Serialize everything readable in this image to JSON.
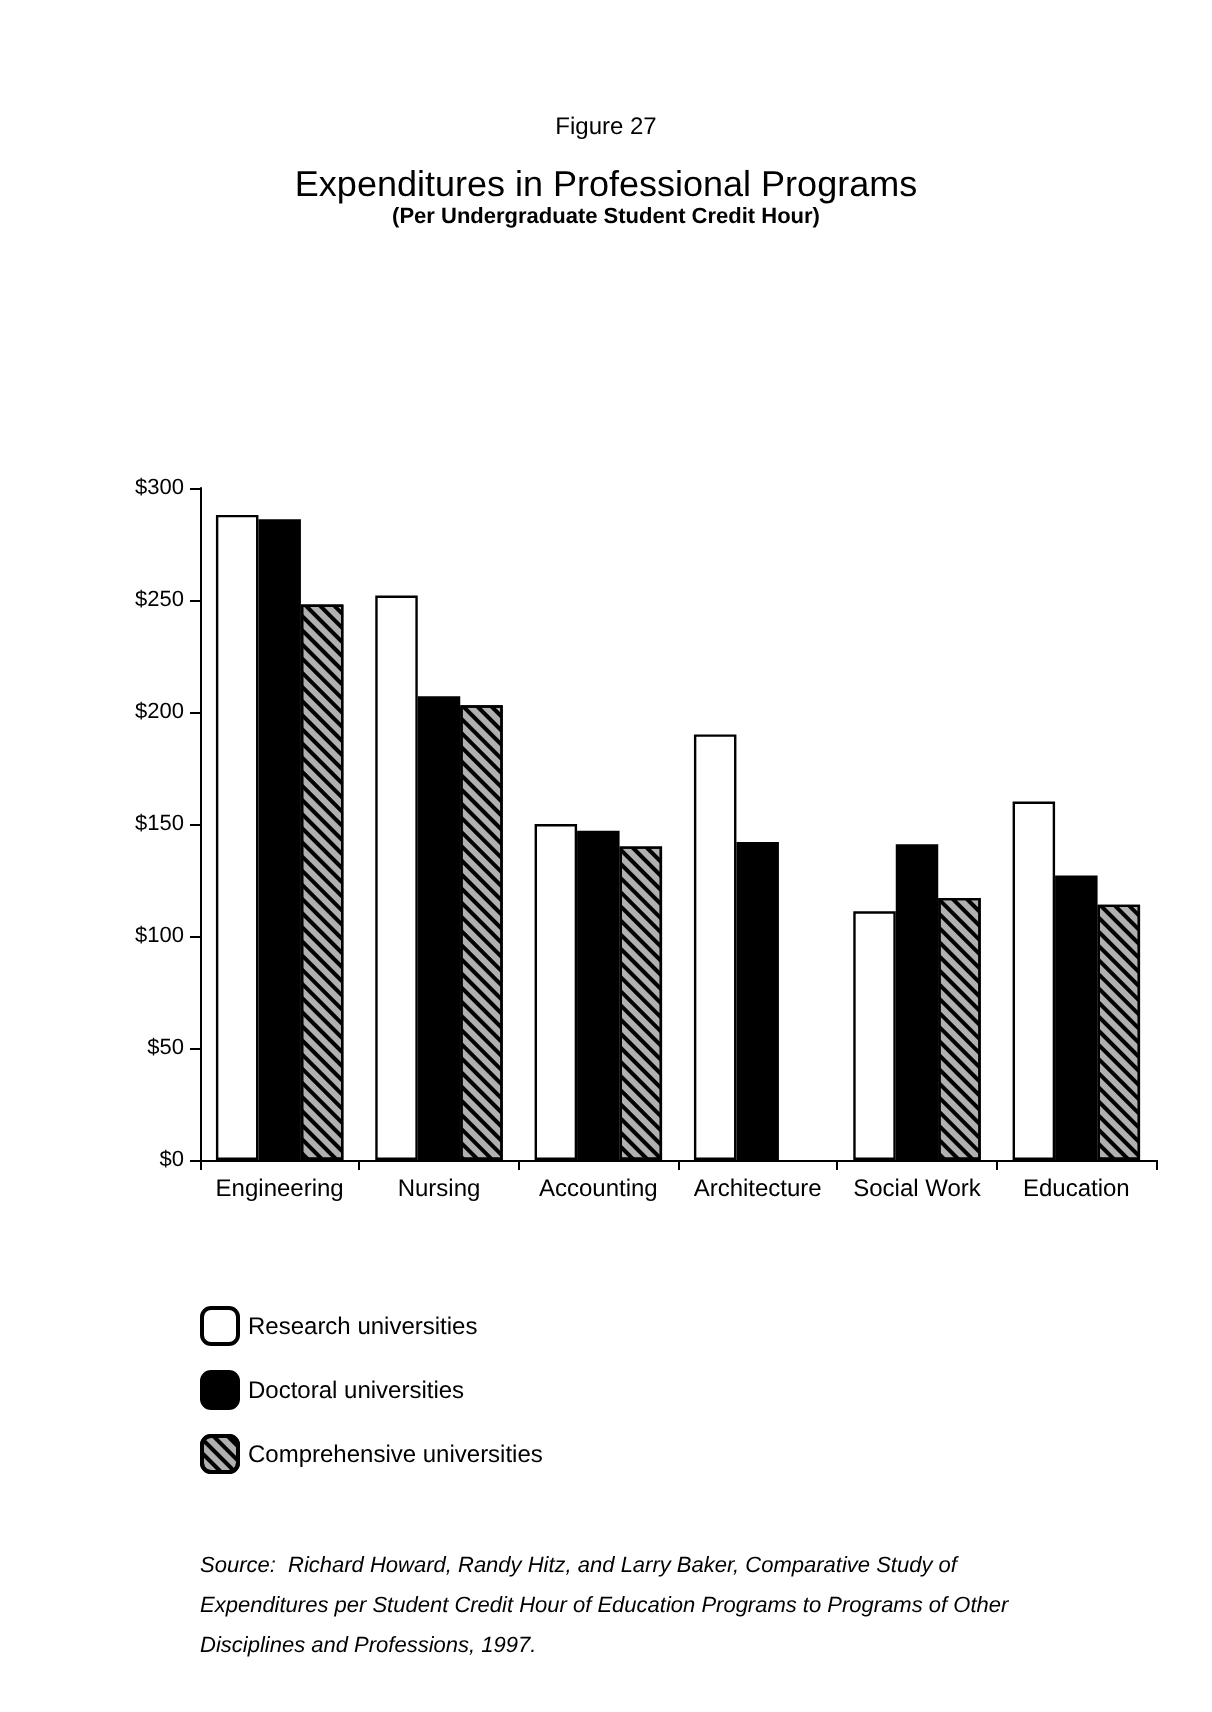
{
  "chart_data": {
    "type": "bar",
    "title": "Expenditures in Professional Programs",
    "subtitle": "(Per Undergraduate Student Credit Hour)",
    "categories": [
      "Engineering",
      "Nursing",
      "Accounting",
      "Architecture",
      "Social Work",
      "Education"
    ],
    "series": [
      {
        "name": "Research universities",
        "color": "#ffffff",
        "values": [
          288,
          252,
          150,
          190,
          111,
          160
        ]
      },
      {
        "name": "Doctoral universities",
        "color": "#000000",
        "values": [
          286,
          207,
          147,
          142,
          141,
          127
        ]
      },
      {
        "name": "Comprehensive universities",
        "color": "#b0b0b0",
        "values": [
          248,
          203,
          140,
          null,
          117,
          114
        ]
      }
    ],
    "ylim": [
      0,
      300
    ],
    "yticks": [
      {
        "value": 0,
        "label": "$0"
      },
      {
        "value": 50,
        "label": "$50"
      },
      {
        "value": 100,
        "label": "$100"
      },
      {
        "value": 150,
        "label": "$150"
      },
      {
        "value": 200,
        "label": "$200"
      },
      {
        "value": 250,
        "label": "$250"
      },
      {
        "value": 300,
        "label": "$300"
      }
    ],
    "grid": false,
    "legend": "bottom",
    "annotations": [
      "Figure 27",
      "Source:  Richard Howard, Randy Hitz, and Larry Baker, Comparative Study of Expenditures per Student Credit Hour of Education Programs to Programs of Other Disciplines and Professions, 1997."
    ]
  }
}
